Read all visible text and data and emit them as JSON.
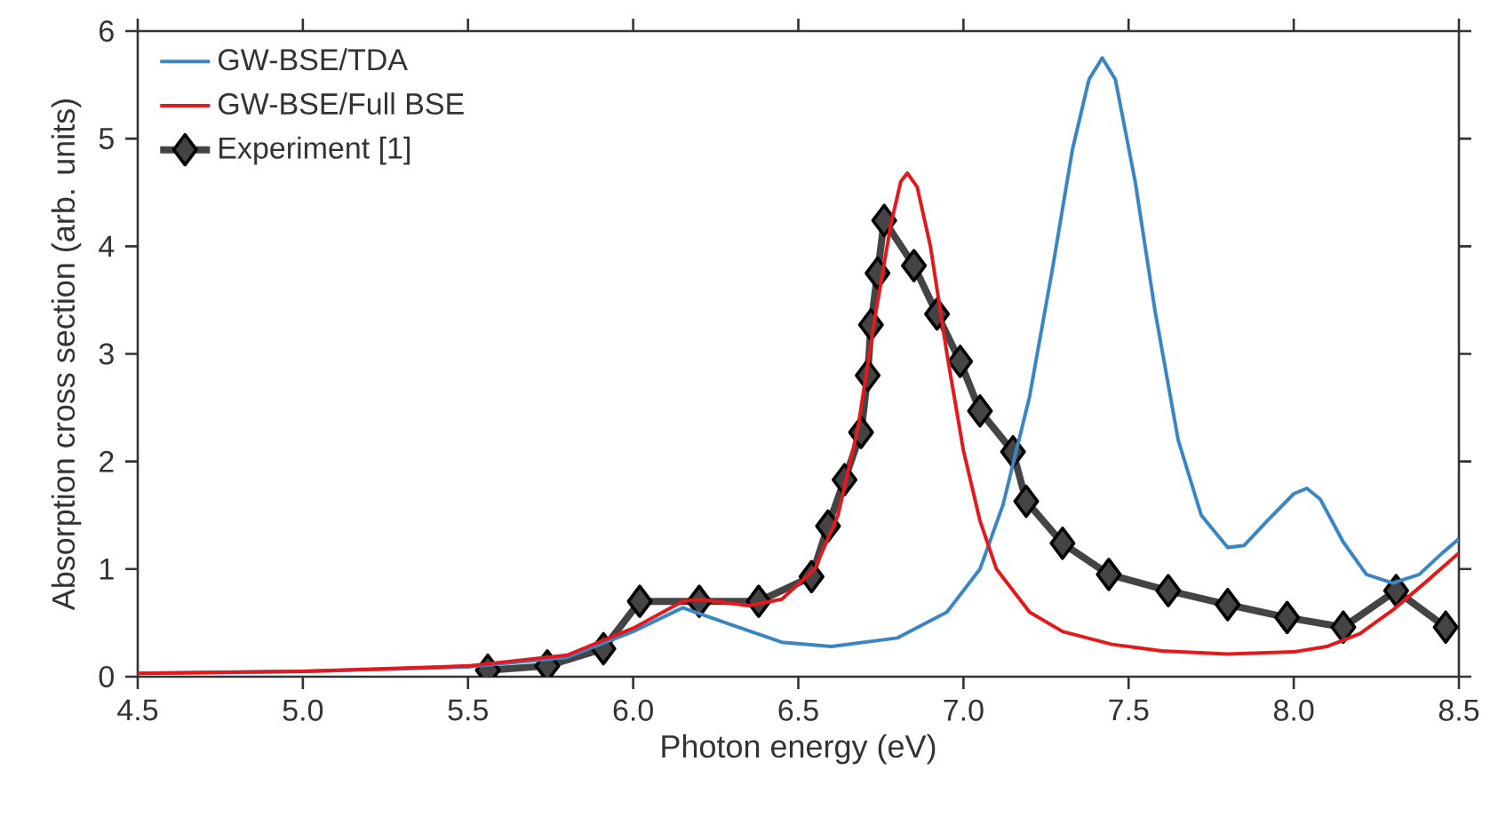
{
  "chart_data": {
    "type": "line",
    "xlabel": "Photon energy (eV)",
    "ylabel": "Absorption cross section (arb. units)",
    "xlim": [
      4.5,
      8.5
    ],
    "ylim": [
      0,
      6
    ],
    "xticks": [
      {
        "value": 4.5,
        "label": "4.5"
      },
      {
        "value": 5,
        "label": "5.0"
      },
      {
        "value": 5.5,
        "label": "5.5"
      },
      {
        "value": 6,
        "label": "6.0"
      },
      {
        "value": 6.5,
        "label": "6.5"
      },
      {
        "value": 7,
        "label": "7.0"
      },
      {
        "value": 7.5,
        "label": "7.5"
      },
      {
        "value": 8,
        "label": "8.0"
      },
      {
        "value": 8.5,
        "label": "8.5"
      }
    ],
    "yticks": [
      0,
      1,
      2,
      3,
      4,
      5,
      6
    ],
    "legend": "top left",
    "grid": false,
    "line_style": "solid",
    "series": [
      {
        "name": "GW-BSE/TDA",
        "color": "#3a86c4",
        "x": [
          4.5,
          5.0,
          5.5,
          5.8,
          6.0,
          6.15,
          6.3,
          6.45,
          6.6,
          6.8,
          6.95,
          7.05,
          7.12,
          7.2,
          7.27,
          7.33,
          7.38,
          7.42,
          7.46,
          7.52,
          7.58,
          7.65,
          7.72,
          7.8,
          7.85,
          7.92,
          8.0,
          8.04,
          8.08,
          8.15,
          8.22,
          8.3,
          8.38,
          8.45,
          8.5
        ],
        "values": [
          0.03,
          0.05,
          0.09,
          0.18,
          0.42,
          0.64,
          0.48,
          0.32,
          0.28,
          0.36,
          0.6,
          1.0,
          1.6,
          2.6,
          3.8,
          4.9,
          5.55,
          5.75,
          5.55,
          4.6,
          3.4,
          2.2,
          1.5,
          1.2,
          1.22,
          1.45,
          1.7,
          1.75,
          1.65,
          1.25,
          0.95,
          0.87,
          0.95,
          1.15,
          1.28
        ]
      },
      {
        "name": "GW-BSE/Full BSE",
        "color": "#e3191c",
        "x": [
          4.5,
          5.0,
          5.5,
          5.8,
          6.0,
          6.15,
          6.2,
          6.35,
          6.45,
          6.55,
          6.62,
          6.68,
          6.73,
          6.78,
          6.81,
          6.83,
          6.86,
          6.9,
          6.95,
          7.0,
          7.05,
          7.1,
          7.2,
          7.3,
          7.45,
          7.6,
          7.8,
          8.0,
          8.1,
          8.2,
          8.3,
          8.4,
          8.5
        ],
        "values": [
          0.03,
          0.05,
          0.1,
          0.2,
          0.45,
          0.7,
          0.72,
          0.66,
          0.72,
          1.0,
          1.5,
          2.3,
          3.3,
          4.2,
          4.6,
          4.68,
          4.55,
          4.0,
          3.0,
          2.1,
          1.45,
          1.0,
          0.6,
          0.42,
          0.3,
          0.24,
          0.21,
          0.23,
          0.28,
          0.4,
          0.62,
          0.88,
          1.15
        ]
      },
      {
        "name": "Experiment [1]",
        "color": "#444444",
        "marker": "diamond",
        "x": [
          5.56,
          5.74,
          5.91,
          6.02,
          6.2,
          6.38,
          6.54,
          6.59,
          6.64,
          6.69,
          6.71,
          6.72,
          6.74,
          6.76,
          6.85,
          6.92,
          6.99,
          7.05,
          7.15,
          7.19,
          7.3,
          7.44,
          7.62,
          7.8,
          7.98,
          8.15,
          8.31,
          8.46
        ],
        "values": [
          0.06,
          0.1,
          0.26,
          0.7,
          0.7,
          0.7,
          0.93,
          1.4,
          1.83,
          2.27,
          2.8,
          3.27,
          3.75,
          4.24,
          3.82,
          3.37,
          2.93,
          2.47,
          2.09,
          1.63,
          1.24,
          0.95,
          0.8,
          0.67,
          0.55,
          0.46,
          0.8,
          0.46
        ]
      }
    ]
  }
}
